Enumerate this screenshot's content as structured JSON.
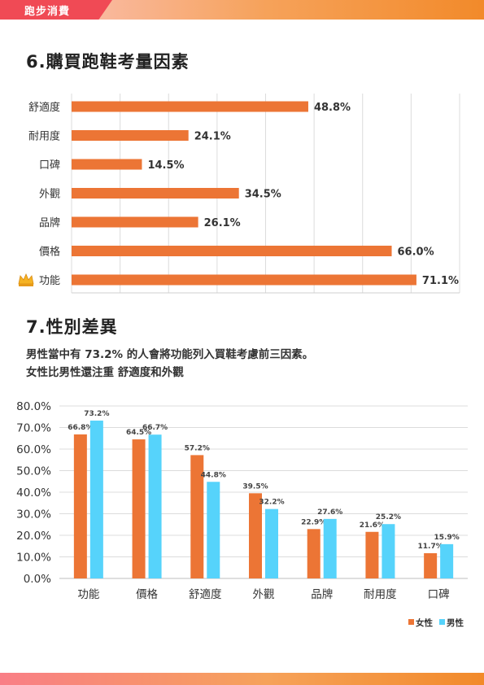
{
  "header": {
    "tab_label": "跑步消費"
  },
  "section6": {
    "title": "6.購買跑鞋考量因素"
  },
  "section7": {
    "title": "7.性別差異",
    "desc_line1": "男性當中有 73.2% 的人會將功能列入買鞋考慮前三因素。",
    "desc_line2": "女性比男性還注重 舒適度和外觀"
  },
  "colors": {
    "accent": "#ec7535",
    "female": "#ec7535",
    "male": "#56d3fb",
    "tab": "#f04a55"
  },
  "chart_data": [
    {
      "type": "bar",
      "orientation": "horizontal",
      "categories": [
        "舒適度",
        "耐用度",
        "口碑",
        "外觀",
        "品牌",
        "價格",
        "功能"
      ],
      "values": [
        48.8,
        24.1,
        14.5,
        34.5,
        26.1,
        66.0,
        71.1
      ],
      "labels": [
        "48.8%",
        "24.1%",
        "14.5%",
        "34.5%",
        "26.1%",
        "66.0%",
        "71.1%"
      ],
      "xlim": [
        0,
        80
      ],
      "grid": true,
      "highlight": {
        "category": "功能",
        "icon": "crown-icon"
      }
    },
    {
      "type": "bar",
      "categories": [
        "功能",
        "價格",
        "舒適度",
        "外觀",
        "品牌",
        "耐用度",
        "口碑"
      ],
      "series": [
        {
          "name": "女性",
          "values": [
            66.8,
            64.5,
            57.2,
            39.5,
            22.9,
            21.6,
            11.7
          ],
          "labels": [
            "66.8%",
            "64.5%",
            "57.2%",
            "39.5%",
            "22.9%",
            "21.6%",
            "11.7%"
          ]
        },
        {
          "name": "男性",
          "values": [
            73.2,
            66.7,
            44.8,
            32.2,
            27.6,
            25.2,
            15.9
          ],
          "labels": [
            "73.2%",
            "66.7%",
            "44.8%",
            "32.2%",
            "27.6%",
            "25.2%",
            "15.9%"
          ]
        }
      ],
      "yticks": [
        "0.0%",
        "10.0%",
        "20.0%",
        "30.0%",
        "40.0%",
        "50.0%",
        "60.0%",
        "70.0%",
        "80.0%"
      ],
      "ylim": [
        0,
        80
      ],
      "grid": true,
      "legend": "bottom-right"
    }
  ]
}
